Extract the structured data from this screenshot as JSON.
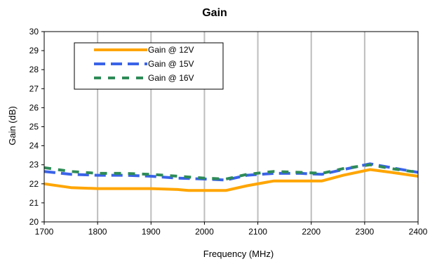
{
  "chart_data": {
    "type": "line",
    "title": "Gain",
    "xlabel": "Frequency (MHz)",
    "ylabel": "Gain (dB)",
    "xlim": [
      1700,
      2400
    ],
    "ylim": [
      20,
      30
    ],
    "x_ticks": [
      1700,
      1800,
      1900,
      2000,
      2100,
      2200,
      2300,
      2400
    ],
    "y_ticks": [
      20,
      21,
      22,
      23,
      24,
      25,
      26,
      27,
      28,
      29,
      30
    ],
    "grid": "vertical",
    "legend_position": "top-left",
    "series": [
      {
        "name": "Gain @ 12V",
        "color": "#ffa500",
        "style": "solid",
        "x": [
          1700,
          1750,
          1800,
          1850,
          1900,
          1950,
          1970,
          2000,
          2040,
          2080,
          2130,
          2180,
          2220,
          2260,
          2310,
          2350,
          2400
        ],
        "y": [
          22.0,
          21.8,
          21.75,
          21.75,
          21.75,
          21.7,
          21.65,
          21.65,
          21.65,
          21.9,
          22.15,
          22.15,
          22.15,
          22.45,
          22.75,
          22.6,
          22.4
        ]
      },
      {
        "name": "Gain @ 15V",
        "color": "#3a63e8",
        "style": "dashed",
        "x": [
          1700,
          1750,
          1800,
          1850,
          1900,
          1950,
          2000,
          2040,
          2080,
          2130,
          2180,
          2220,
          2260,
          2310,
          2350,
          2400
        ],
        "y": [
          22.65,
          22.5,
          22.45,
          22.45,
          22.4,
          22.3,
          22.25,
          22.2,
          22.45,
          22.55,
          22.55,
          22.5,
          22.75,
          23.05,
          22.85,
          22.6
        ]
      },
      {
        "name": "Gain @ 16V",
        "color": "#2e8b57",
        "style": "dashed",
        "x": [
          1700,
          1750,
          1800,
          1850,
          1900,
          1950,
          2000,
          2040,
          2080,
          2130,
          2180,
          2220,
          2260,
          2310,
          2350,
          2400
        ],
        "y": [
          22.85,
          22.65,
          22.55,
          22.55,
          22.5,
          22.4,
          22.3,
          22.25,
          22.5,
          22.65,
          22.6,
          22.55,
          22.8,
          23.0,
          22.8,
          22.6
        ]
      }
    ]
  }
}
